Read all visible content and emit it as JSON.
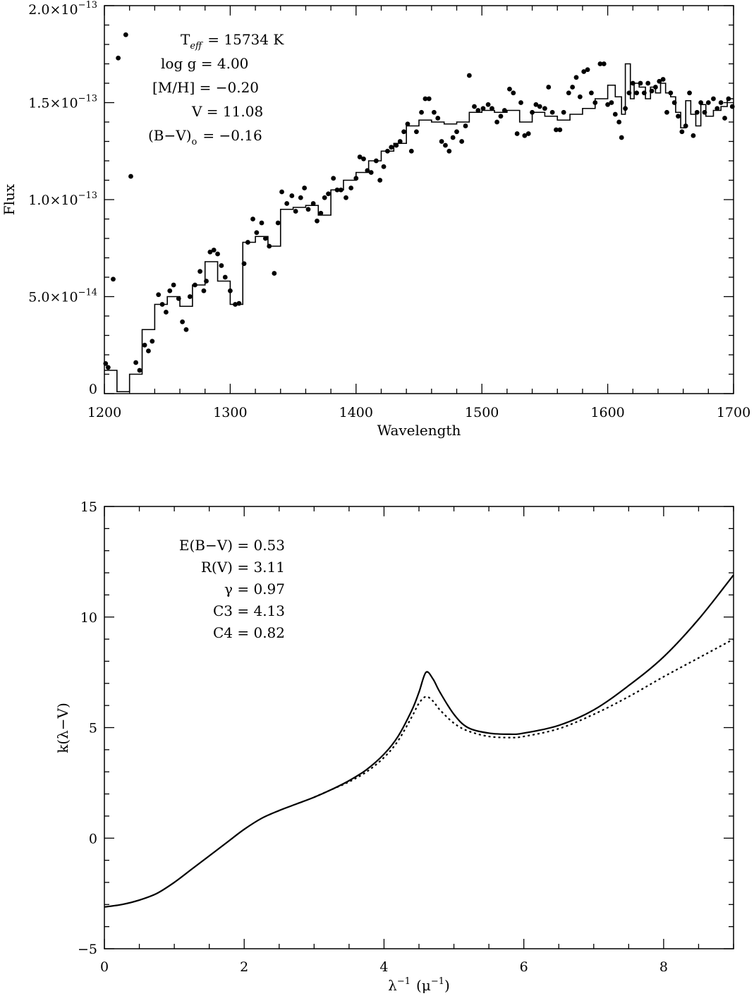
{
  "chart_data": [
    {
      "type": "scatter",
      "xlabel": "Wavelength",
      "ylabel": "Flux",
      "xlim": [
        1200,
        1700
      ],
      "ylim": [
        0,
        2e-13
      ],
      "x_ticks": [
        {
          "v": 1200,
          "label": "1200"
        },
        {
          "v": 1300,
          "label": "1300"
        },
        {
          "v": 1400,
          "label": "1400"
        },
        {
          "v": 1500,
          "label": "1500"
        },
        {
          "v": 1600,
          "label": "1600"
        },
        {
          "v": 1700,
          "label": "1700"
        }
      ],
      "y_ticks": [
        {
          "v": 0,
          "mant": "0",
          "exp": ""
        },
        {
          "v": 5e-14,
          "mant": "5.0×10",
          "exp": "−14"
        },
        {
          "v": 1e-13,
          "mant": "1.0×10",
          "exp": "−13"
        },
        {
          "v": 1.5e-13,
          "mant": "1.5×10",
          "exp": "−13"
        },
        {
          "v": 2e-13,
          "mant": "2.0×10",
          "exp": "−13"
        }
      ],
      "annotations": {
        "teff": {
          "label": "T",
          "sub": "eff",
          "value": "= 15734 K"
        },
        "logg": "log g = 4.00",
        "mh": "[M/H] = −0.20",
        "v": "V = 11.08",
        "bv": {
          "label": "(B−V)",
          "sub": "o",
          "value": "= −0.16"
        }
      },
      "points": [
        [
          1201,
          1.55e-14
        ],
        [
          1203,
          1.35e-14
        ],
        [
          1207,
          5.9e-14
        ],
        [
          1211,
          1.73e-13
        ],
        [
          1217,
          1.85e-13
        ],
        [
          1221,
          1.12e-13
        ],
        [
          1225,
          1.6e-14
        ],
        [
          1228,
          1.2e-14
        ],
        [
          1232,
          2.5e-14
        ],
        [
          1235,
          2.2e-14
        ],
        [
          1238,
          2.7e-14
        ],
        [
          1243,
          5.1e-14
        ],
        [
          1246,
          4.6e-14
        ],
        [
          1249,
          4.2e-14
        ],
        [
          1252,
          5.3e-14
        ],
        [
          1255,
          5.6e-14
        ],
        [
          1259,
          4.9e-14
        ],
        [
          1262,
          3.7e-14
        ],
        [
          1265,
          3.3e-14
        ],
        [
          1268,
          5e-14
        ],
        [
          1272,
          5.6e-14
        ],
        [
          1276,
          6.3e-14
        ],
        [
          1279,
          5.3e-14
        ],
        [
          1281,
          5.8e-14
        ],
        [
          1284,
          7.3e-14
        ],
        [
          1287,
          7.4e-14
        ],
        [
          1290,
          7.2e-14
        ],
        [
          1293,
          6.6e-14
        ],
        [
          1296,
          6e-14
        ],
        [
          1300,
          5.3e-14
        ],
        [
          1304,
          4.6e-14
        ],
        [
          1307,
          4.65e-14
        ],
        [
          1311,
          6.7e-14
        ],
        [
          1314,
          7.8e-14
        ],
        [
          1318,
          9e-14
        ],
        [
          1321,
          8.3e-14
        ],
        [
          1325,
          8.8e-14
        ],
        [
          1328,
          8e-14
        ],
        [
          1331,
          7.6e-14
        ],
        [
          1335,
          6.2e-14
        ],
        [
          1338,
          8.8e-14
        ],
        [
          1341,
          1.04e-13
        ],
        [
          1345,
          9.8e-14
        ],
        [
          1349,
          1.02e-13
        ],
        [
          1352,
          9.4e-14
        ],
        [
          1356,
          1.01e-13
        ],
        [
          1359,
          1.06e-13
        ],
        [
          1362,
          9.5e-14
        ],
        [
          1366,
          9.8e-14
        ],
        [
          1369,
          8.9e-14
        ],
        [
          1372,
          9.3e-14
        ],
        [
          1375,
          1.01e-13
        ],
        [
          1378,
          1.03e-13
        ],
        [
          1382,
          1.11e-13
        ],
        [
          1385,
          1.05e-13
        ],
        [
          1388,
          1.05e-13
        ],
        [
          1392,
          1.01e-13
        ],
        [
          1396,
          1.06e-13
        ],
        [
          1400,
          1.11e-13
        ],
        [
          1403,
          1.22e-13
        ],
        [
          1406,
          1.21e-13
        ],
        [
          1409,
          1.15e-13
        ],
        [
          1412,
          1.14e-13
        ],
        [
          1416,
          1.2e-13
        ],
        [
          1419,
          1.1e-13
        ],
        [
          1422,
          1.17e-13
        ],
        [
          1425,
          1.25e-13
        ],
        [
          1428,
          1.27e-13
        ],
        [
          1432,
          1.28e-13
        ],
        [
          1435,
          1.3e-13
        ],
        [
          1438,
          1.35e-13
        ],
        [
          1441,
          1.39e-13
        ],
        [
          1444,
          1.25e-13
        ],
        [
          1448,
          1.35e-13
        ],
        [
          1452,
          1.45e-13
        ],
        [
          1455,
          1.52e-13
        ],
        [
          1458,
          1.52e-13
        ],
        [
          1462,
          1.45e-13
        ],
        [
          1465,
          1.42e-13
        ],
        [
          1468,
          1.3e-13
        ],
        [
          1471,
          1.28e-13
        ],
        [
          1474,
          1.25e-13
        ],
        [
          1477,
          1.32e-13
        ],
        [
          1480,
          1.35e-13
        ],
        [
          1484,
          1.3e-13
        ],
        [
          1487,
          1.38e-13
        ],
        [
          1490,
          1.64e-13
        ],
        [
          1494,
          1.48e-13
        ],
        [
          1497,
          1.46e-13
        ],
        [
          1501,
          1.47e-13
        ],
        [
          1505,
          1.49e-13
        ],
        [
          1508,
          1.47e-13
        ],
        [
          1512,
          1.4e-13
        ],
        [
          1515,
          1.43e-13
        ],
        [
          1518,
          1.46e-13
        ],
        [
          1522,
          1.57e-13
        ],
        [
          1525,
          1.55e-13
        ],
        [
          1528,
          1.34e-13
        ],
        [
          1531,
          1.5e-13
        ],
        [
          1534,
          1.33e-13
        ],
        [
          1537,
          1.34e-13
        ],
        [
          1540,
          1.45e-13
        ],
        [
          1543,
          1.49e-13
        ],
        [
          1546,
          1.48e-13
        ],
        [
          1550,
          1.47e-13
        ],
        [
          1553,
          1.58e-13
        ],
        [
          1556,
          1.45e-13
        ],
        [
          1559,
          1.36e-13
        ],
        [
          1562,
          1.36e-13
        ],
        [
          1565,
          1.45e-13
        ],
        [
          1569,
          1.55e-13
        ],
        [
          1572,
          1.58e-13
        ],
        [
          1575,
          1.63e-13
        ],
        [
          1578,
          1.53e-13
        ],
        [
          1581,
          1.66e-13
        ],
        [
          1584,
          1.67e-13
        ],
        [
          1587,
          1.55e-13
        ],
        [
          1590,
          1.5e-13
        ],
        [
          1594,
          1.7e-13
        ],
        [
          1597,
          1.7e-13
        ],
        [
          1600,
          1.49e-13
        ],
        [
          1603,
          1.5e-13
        ],
        [
          1606,
          1.44e-13
        ],
        [
          1609,
          1.4e-13
        ],
        [
          1611,
          1.32e-13
        ],
        [
          1614,
          1.47e-13
        ],
        [
          1617,
          1.55e-13
        ],
        [
          1620,
          1.6e-13
        ],
        [
          1623,
          1.55e-13
        ],
        [
          1626,
          1.6e-13
        ],
        [
          1629,
          1.55e-13
        ],
        [
          1632,
          1.6e-13
        ],
        [
          1635,
          1.56e-13
        ],
        [
          1638,
          1.58e-13
        ],
        [
          1641,
          1.61e-13
        ],
        [
          1644,
          1.62e-13
        ],
        [
          1647,
          1.45e-13
        ],
        [
          1650,
          1.55e-13
        ],
        [
          1653,
          1.5e-13
        ],
        [
          1656,
          1.43e-13
        ],
        [
          1659,
          1.35e-13
        ],
        [
          1662,
          1.38e-13
        ],
        [
          1665,
          1.55e-13
        ],
        [
          1668,
          1.33e-13
        ],
        [
          1671,
          1.45e-13
        ],
        [
          1674,
          1.5e-13
        ],
        [
          1677,
          1.45e-13
        ],
        [
          1680,
          1.5e-13
        ],
        [
          1684,
          1.52e-13
        ],
        [
          1687,
          1.47e-13
        ],
        [
          1690,
          1.5e-13
        ],
        [
          1693,
          1.42e-13
        ],
        [
          1696,
          1.52e-13
        ],
        [
          1699,
          1.48e-13
        ]
      ],
      "model_steps": [
        [
          1200,
          1.2e-14
        ],
        [
          1210,
          1e-15
        ],
        [
          1220,
          1e-14
        ],
        [
          1230,
          3.3e-14
        ],
        [
          1240,
          4.6e-14
        ],
        [
          1250,
          5e-14
        ],
        [
          1260,
          4.5e-14
        ],
        [
          1270,
          5.6e-14
        ],
        [
          1280,
          6.8e-14
        ],
        [
          1290,
          5.8e-14
        ],
        [
          1300,
          4.6e-14
        ],
        [
          1310,
          7.8e-14
        ],
        [
          1320,
          8.1e-14
        ],
        [
          1330,
          7.6e-14
        ],
        [
          1340,
          9.5e-14
        ],
        [
          1350,
          9.6e-14
        ],
        [
          1360,
          9.7e-14
        ],
        [
          1370,
          9.2e-14
        ],
        [
          1380,
          1.05e-13
        ],
        [
          1390,
          1.1e-13
        ],
        [
          1400,
          1.14e-13
        ],
        [
          1410,
          1.2e-13
        ],
        [
          1420,
          1.25e-13
        ],
        [
          1430,
          1.29e-13
        ],
        [
          1440,
          1.38e-13
        ],
        [
          1450,
          1.41e-13
        ],
        [
          1460,
          1.4e-13
        ],
        [
          1470,
          1.39e-13
        ],
        [
          1480,
          1.4e-13
        ],
        [
          1490,
          1.45e-13
        ],
        [
          1500,
          1.46e-13
        ],
        [
          1510,
          1.45e-13
        ],
        [
          1520,
          1.46e-13
        ],
        [
          1530,
          1.4e-13
        ],
        [
          1540,
          1.45e-13
        ],
        [
          1550,
          1.43e-13
        ],
        [
          1560,
          1.41e-13
        ],
        [
          1570,
          1.44e-13
        ],
        [
          1580,
          1.47e-13
        ],
        [
          1590,
          1.52e-13
        ],
        [
          1600,
          1.59e-13
        ],
        [
          1606,
          1.53e-13
        ],
        [
          1611,
          1.44e-13
        ],
        [
          1614,
          1.7e-13
        ],
        [
          1618,
          1.52e-13
        ],
        [
          1621,
          1.6e-13
        ],
        [
          1625,
          1.58e-13
        ],
        [
          1630,
          1.52e-13
        ],
        [
          1634,
          1.58e-13
        ],
        [
          1638,
          1.55e-13
        ],
        [
          1642,
          1.6e-13
        ],
        [
          1646,
          1.55e-13
        ],
        [
          1650,
          1.53e-13
        ],
        [
          1654,
          1.45e-13
        ],
        [
          1658,
          1.37e-13
        ],
        [
          1662,
          1.51e-13
        ],
        [
          1666,
          1.44e-13
        ],
        [
          1670,
          1.38e-13
        ],
        [
          1674,
          1.49e-13
        ],
        [
          1678,
          1.43e-13
        ],
        [
          1684,
          1.46e-13
        ],
        [
          1690,
          1.48e-13
        ],
        [
          1695,
          1.52e-13
        ],
        [
          1700,
          1.51e-13
        ]
      ]
    },
    {
      "type": "line",
      "xlabel": {
        "base": "λ",
        "sup1": "−1",
        "paren": "(μ",
        "sup2": "−1",
        "close": ")"
      },
      "ylabel": "k(λ−V)",
      "xlim": [
        0,
        9
      ],
      "ylim": [
        -5,
        15
      ],
      "x_ticks": [
        {
          "v": 0,
          "label": "0"
        },
        {
          "v": 2,
          "label": "2"
        },
        {
          "v": 4,
          "label": "4"
        },
        {
          "v": 6,
          "label": "6"
        },
        {
          "v": 8,
          "label": "8"
        }
      ],
      "y_ticks": [
        {
          "v": -5,
          "label": "−5"
        },
        {
          "v": 0,
          "label": "0"
        },
        {
          "v": 5,
          "label": "5"
        },
        {
          "v": 10,
          "label": "10"
        },
        {
          "v": 15,
          "label": "15"
        }
      ],
      "annotations": [
        "E(B−V) = 0.53",
        "R(V) = 3.11",
        "γ = 0.97",
        "C3 = 4.13",
        "C4 = 0.82"
      ],
      "series": [
        {
          "style": "solid",
          "points": [
            [
              0,
              -3.11
            ],
            [
              0.25,
              -3.0
            ],
            [
              0.5,
              -2.8
            ],
            [
              0.75,
              -2.5
            ],
            [
              1.0,
              -2.0
            ],
            [
              1.25,
              -1.4
            ],
            [
              1.5,
              -0.8
            ],
            [
              1.75,
              -0.2
            ],
            [
              2.0,
              0.4
            ],
            [
              2.25,
              0.9
            ],
            [
              2.5,
              1.25
            ],
            [
              2.75,
              1.55
            ],
            [
              3.0,
              1.85
            ],
            [
              3.25,
              2.2
            ],
            [
              3.5,
              2.6
            ],
            [
              3.75,
              3.1
            ],
            [
              4.0,
              3.8
            ],
            [
              4.2,
              4.6
            ],
            [
              4.4,
              5.8
            ],
            [
              4.5,
              6.6
            ],
            [
              4.6,
              7.5
            ],
            [
              4.7,
              7.2
            ],
            [
              4.8,
              6.6
            ],
            [
              5.0,
              5.6
            ],
            [
              5.2,
              5.0
            ],
            [
              5.5,
              4.75
            ],
            [
              5.8,
              4.7
            ],
            [
              6.0,
              4.75
            ],
            [
              6.5,
              5.1
            ],
            [
              7.0,
              5.8
            ],
            [
              7.5,
              6.9
            ],
            [
              8.0,
              8.2
            ],
            [
              8.5,
              9.9
            ],
            [
              9.0,
              11.9
            ]
          ]
        },
        {
          "style": "dotted",
          "points": [
            [
              3.0,
              1.85
            ],
            [
              3.25,
              2.2
            ],
            [
              3.5,
              2.55
            ],
            [
              3.75,
              3.0
            ],
            [
              4.0,
              3.65
            ],
            [
              4.2,
              4.4
            ],
            [
              4.4,
              5.5
            ],
            [
              4.5,
              6.1
            ],
            [
              4.6,
              6.4
            ],
            [
              4.7,
              6.2
            ],
            [
              4.8,
              5.8
            ],
            [
              5.0,
              5.2
            ],
            [
              5.2,
              4.85
            ],
            [
              5.5,
              4.6
            ],
            [
              5.8,
              4.55
            ],
            [
              6.0,
              4.6
            ],
            [
              6.5,
              4.95
            ],
            [
              7.0,
              5.6
            ],
            [
              7.5,
              6.4
            ],
            [
              8.0,
              7.3
            ],
            [
              8.5,
              8.15
            ],
            [
              9.0,
              9.0
            ]
          ]
        }
      ]
    }
  ]
}
